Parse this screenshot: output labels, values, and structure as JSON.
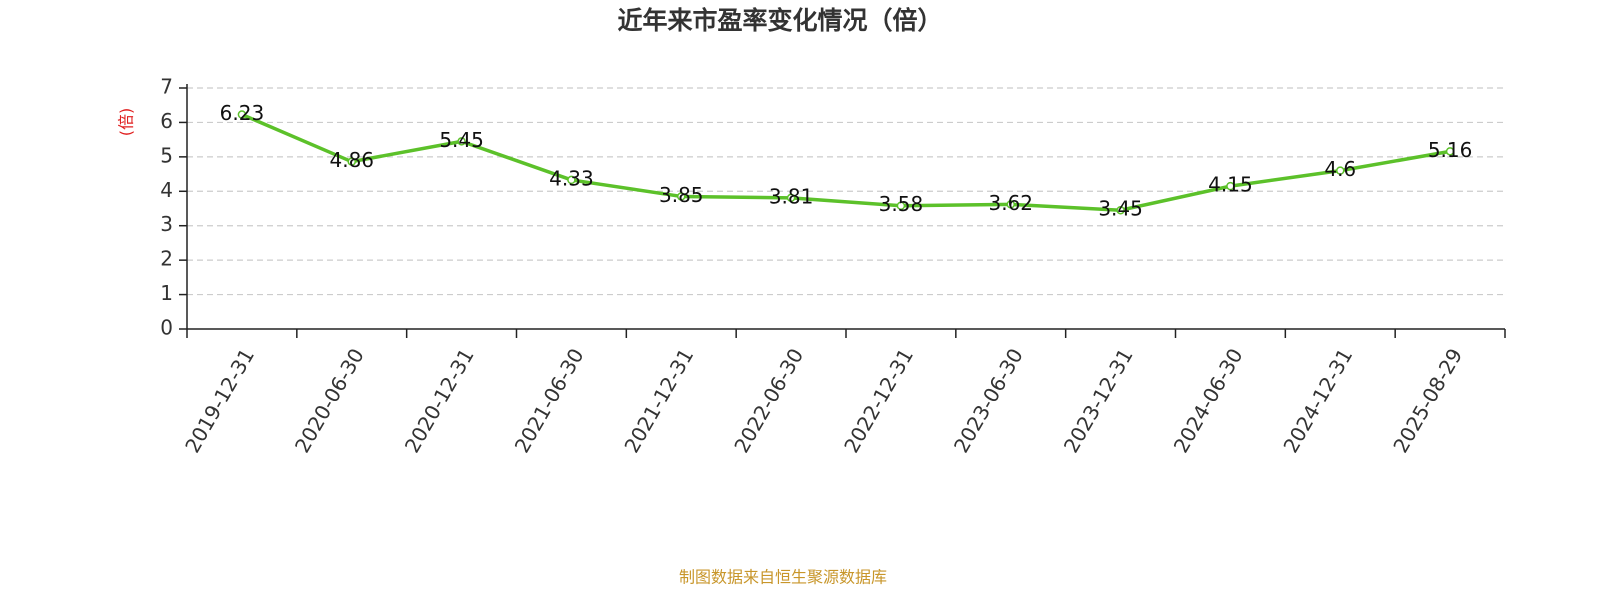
{
  "chart_data": {
    "type": "line",
    "title": "近年来市盈率变化情况（倍）",
    "y_label": "(倍)",
    "source": "制图数据来自恒生聚源数据库",
    "categories": [
      "2019-12-31",
      "2020-06-30",
      "2020-12-31",
      "2021-06-30",
      "2021-12-31",
      "2022-06-30",
      "2022-12-31",
      "2023-06-30",
      "2023-12-31",
      "2024-06-30",
      "2024-12-31",
      "2025-08-29"
    ],
    "values": [
      6.23,
      4.86,
      5.45,
      4.33,
      3.85,
      3.81,
      3.58,
      3.62,
      3.45,
      4.15,
      4.6,
      5.16
    ],
    "color": "#5cc12a",
    "ylim": [
      0,
      7
    ],
    "yticks": [
      0,
      1,
      2,
      3,
      4,
      5,
      6,
      7
    ],
    "grid": true
  }
}
